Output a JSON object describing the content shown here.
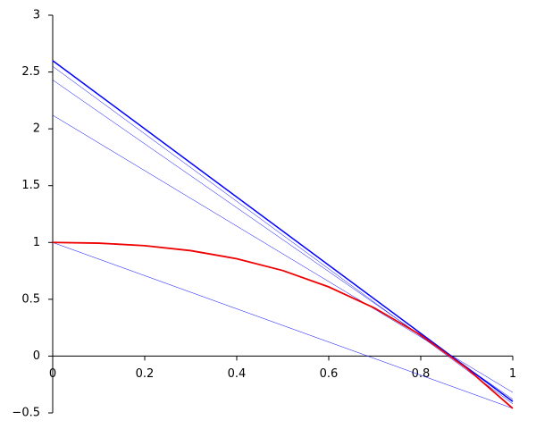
{
  "chart_data": {
    "type": "line",
    "xlim": [
      0,
      1
    ],
    "ylim": [
      -0.5,
      3
    ],
    "xticks": [
      0,
      0.2,
      0.4,
      0.6,
      0.8,
      1
    ],
    "yticks": [
      {
        "value": -0.5,
        "label": "−0.5"
      },
      0,
      0.5,
      1,
      1.5,
      2,
      2.5,
      3
    ],
    "grid": false,
    "series": [
      {
        "color": "#0000ff",
        "line_width": 0.5,
        "x": [
          0,
          1
        ],
        "values": [
          1,
          -0.46
        ]
      },
      {
        "color": "#0000ff",
        "line_width": 0.5,
        "x": [
          0,
          1
        ],
        "values": [
          2.12,
          -0.32
        ]
      },
      {
        "color": "#0000ff",
        "line_width": 0.5,
        "x": [
          0,
          1
        ],
        "values": [
          2.43,
          -0.38
        ]
      },
      {
        "color": "#0000ff",
        "line_width": 0.5,
        "x": [
          0,
          1
        ],
        "values": [
          2.55,
          -0.42
        ]
      },
      {
        "color": "#0000ff",
        "line_width": 1.5,
        "x": [
          0,
          1
        ],
        "values": [
          2.6,
          -0.4
        ]
      },
      {
        "color": "#ee0000",
        "line_width": 1.8,
        "x": [
          0,
          0.1,
          0.2,
          0.3,
          0.4,
          0.5,
          0.6,
          0.7,
          0.8,
          0.9,
          1
        ],
        "values": [
          1,
          0.994,
          0.972,
          0.928,
          0.857,
          0.753,
          0.609,
          0.422,
          0.185,
          -0.107,
          -0.46
        ]
      }
    ]
  }
}
